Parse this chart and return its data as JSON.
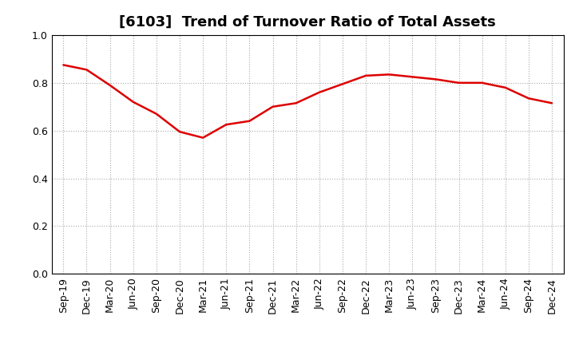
{
  "title": "[6103]  Trend of Turnover Ratio of Total Assets",
  "x_labels": [
    "Sep-19",
    "Dec-19",
    "Mar-20",
    "Jun-20",
    "Sep-20",
    "Dec-20",
    "Mar-21",
    "Jun-21",
    "Sep-21",
    "Dec-21",
    "Mar-22",
    "Jun-22",
    "Sep-22",
    "Dec-22",
    "Mar-23",
    "Jun-23",
    "Sep-23",
    "Dec-23",
    "Mar-24",
    "Jun-24",
    "Sep-24",
    "Dec-24"
  ],
  "y_values": [
    0.875,
    0.855,
    0.79,
    0.72,
    0.67,
    0.595,
    0.57,
    0.625,
    0.64,
    0.7,
    0.715,
    0.76,
    0.795,
    0.83,
    0.835,
    0.825,
    0.815,
    0.8,
    0.8,
    0.78,
    0.735,
    0.715
  ],
  "line_color": "#dd0000",
  "ylim": [
    0.0,
    1.0
  ],
  "yticks": [
    0.0,
    0.2,
    0.4,
    0.6,
    0.8,
    1.0
  ],
  "background_color": "#ffffff",
  "grid_color": "#aaaaaa",
  "title_fontsize": 13,
  "axis_fontsize": 9
}
